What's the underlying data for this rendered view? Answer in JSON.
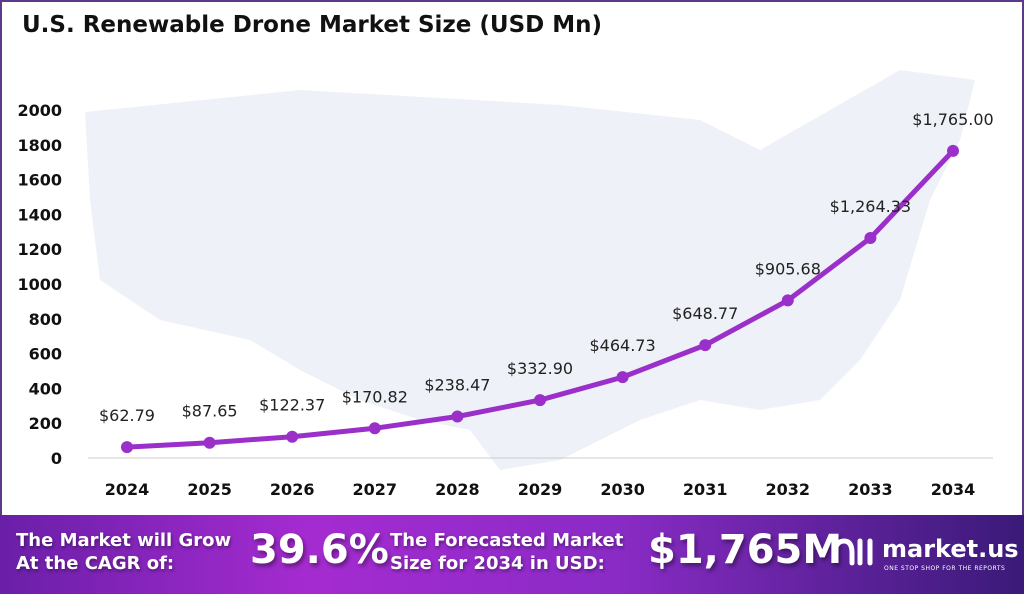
{
  "chart_data": {
    "type": "line",
    "title": "U.S. Renewable Drone Market Size (USD Mn)",
    "categories": [
      "2024",
      "2025",
      "2026",
      "2027",
      "2028",
      "2029",
      "2030",
      "2031",
      "2032",
      "2033",
      "2034"
    ],
    "values": [
      62.79,
      87.65,
      122.37,
      170.82,
      238.47,
      332.9,
      464.73,
      648.77,
      905.68,
      1264.33,
      1765.0
    ],
    "data_labels": [
      "$62.79",
      "$87.65",
      "$122.37",
      "$170.82",
      "$238.47",
      "$332.90",
      "$464.73",
      "$648.77",
      "$905.68",
      "$1,264.33",
      "$1,765.00"
    ],
    "yticks": [
      "0",
      "200",
      "400",
      "600",
      "800",
      "1000",
      "1200",
      "1400",
      "1600",
      "1800",
      "2000"
    ],
    "ylim": [
      0,
      2000
    ],
    "grid": false,
    "line_color": "#9b2fc9"
  },
  "banner": {
    "cagr_text_1": "The Market will Grow",
    "cagr_text_2": "At the CAGR of:",
    "cagr_value": "39.6%",
    "forecast_text_1": "The Forecasted Market",
    "forecast_text_2": "Size for 2034 in USD:",
    "forecast_value": "$1,765M",
    "logo_name": "market.us",
    "logo_tagline": "ONE STOP SHOP FOR THE REPORTS"
  }
}
